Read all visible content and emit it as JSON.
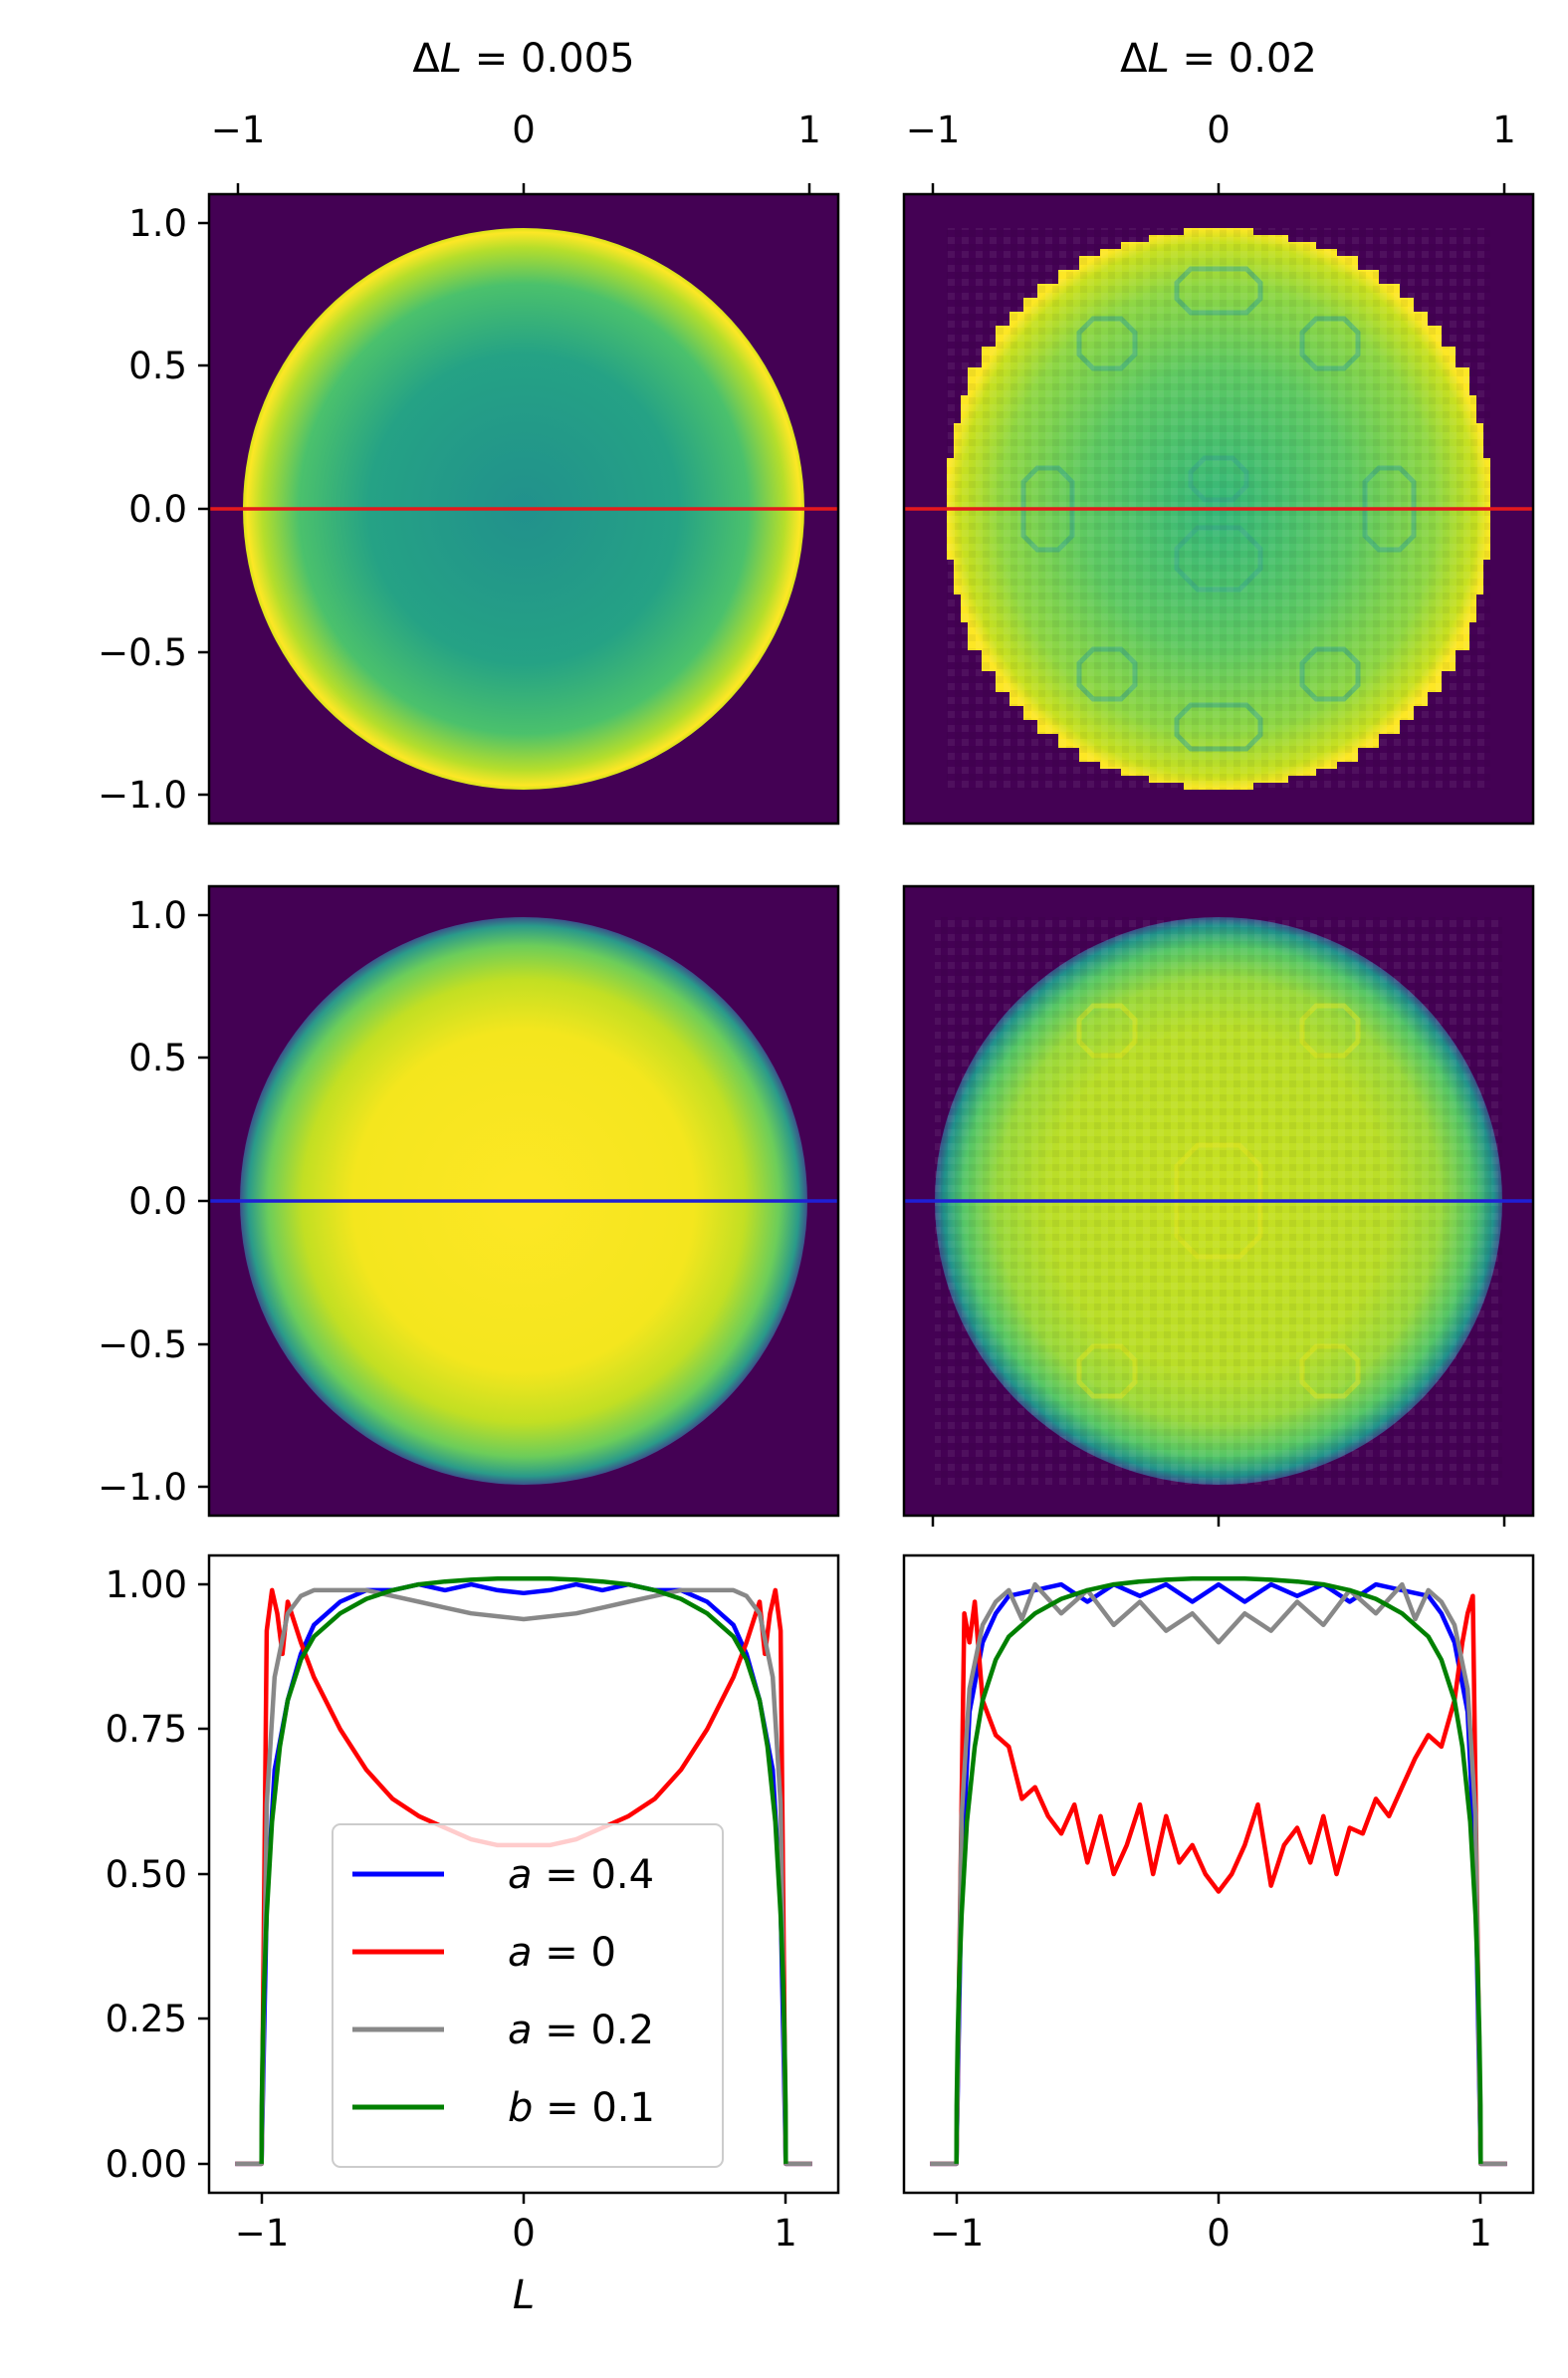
{
  "chart_data": [
    {
      "panel": "top-left",
      "type": "heatmap",
      "title": "ΔL = 0.005",
      "title_prefix": "Δ",
      "title_var": "L",
      "title_rest": " = 0.005",
      "x_ticks": [
        "−1",
        "0",
        "1"
      ],
      "y_ticks": [
        "1.0",
        "0.5",
        "0.0",
        "−0.5",
        "−1.0"
      ],
      "xlim": [
        -1.1,
        1.1
      ],
      "ylim": [
        -1.1,
        1.1
      ],
      "field": "disk radius 0.98, value high at rim, medium in interior",
      "cut_line": {
        "y": 0.0,
        "color": "#e41a1c"
      }
    },
    {
      "panel": "top-right",
      "type": "heatmap",
      "title": "ΔL = 0.02",
      "title_prefix": "Δ",
      "title_var": "L",
      "title_rest": " = 0.02",
      "x_ticks": [
        "−1",
        "0",
        "1"
      ],
      "xlim": [
        -1.1,
        1.1
      ],
      "ylim": [
        -1.1,
        1.1
      ],
      "field": "pixelated disk radius 0.98 with moiré pattern",
      "cut_line": {
        "y": 0.0,
        "color": "#e41a1c"
      }
    },
    {
      "panel": "middle-left",
      "type": "heatmap",
      "y_ticks": [
        "1.0",
        "0.5",
        "0.0",
        "−0.5",
        "−1.0"
      ],
      "xlim": [
        -1.1,
        1.1
      ],
      "ylim": [
        -1.1,
        1.1
      ],
      "field": "smooth disk, bright yellow interior fading at rim",
      "cut_line": {
        "y": 0.0,
        "color": "#1f1fd6"
      }
    },
    {
      "panel": "middle-right",
      "type": "heatmap",
      "xlim": [
        -1.1,
        1.1
      ],
      "ylim": [
        -1.1,
        1.1
      ],
      "field": "pixelated disk, yellow-green interior fading at rim",
      "cut_line": {
        "y": 0.0,
        "color": "#1f1fd6"
      }
    },
    {
      "panel": "bottom-left",
      "type": "line",
      "xlabel": "L",
      "x_ticks": [
        "−1",
        "0",
        "1"
      ],
      "y_ticks": [
        "1.00",
        "0.75",
        "0.50",
        "0.25",
        "0.00"
      ],
      "xlim": [
        -1.2,
        1.2
      ],
      "ylim": [
        -0.05,
        1.05
      ],
      "legend_position": "lower-center",
      "series": [
        {
          "name": "a = 0.4",
          "var": "a",
          "val": " = 0.4",
          "color": "#0000ff",
          "x": [
            -1.1,
            -1.0,
            -0.98,
            -0.95,
            -0.9,
            -0.85,
            -0.8,
            -0.7,
            -0.6,
            -0.5,
            -0.4,
            -0.3,
            -0.2,
            -0.1,
            0.0,
            0.1,
            0.2,
            0.3,
            0.4,
            0.5,
            0.6,
            0.7,
            0.8,
            0.85,
            0.9,
            0.95,
            0.98,
            1.0,
            1.1
          ],
          "y": [
            0.0,
            0.0,
            0.45,
            0.68,
            0.8,
            0.88,
            0.93,
            0.97,
            0.99,
            0.99,
            1.0,
            0.99,
            1.0,
            0.99,
            0.985,
            0.99,
            1.0,
            0.99,
            1.0,
            0.99,
            0.99,
            0.97,
            0.93,
            0.88,
            0.8,
            0.68,
            0.45,
            0.0,
            0.0
          ]
        },
        {
          "name": "a = 0",
          "var": "a",
          "val": " = 0",
          "color": "#ff0000",
          "x": [
            -1.1,
            -1.0,
            -0.98,
            -0.96,
            -0.94,
            -0.92,
            -0.9,
            -0.85,
            -0.8,
            -0.7,
            -0.6,
            -0.5,
            -0.4,
            -0.3,
            -0.2,
            -0.1,
            0.0,
            0.1,
            0.2,
            0.3,
            0.4,
            0.5,
            0.6,
            0.7,
            0.8,
            0.85,
            0.9,
            0.92,
            0.94,
            0.96,
            0.98,
            1.0,
            1.1
          ],
          "y": [
            0.0,
            0.0,
            0.92,
            0.99,
            0.95,
            0.88,
            0.97,
            0.9,
            0.84,
            0.75,
            0.68,
            0.63,
            0.6,
            0.58,
            0.56,
            0.55,
            0.55,
            0.55,
            0.56,
            0.58,
            0.6,
            0.63,
            0.68,
            0.75,
            0.84,
            0.9,
            0.97,
            0.88,
            0.95,
            0.99,
            0.92,
            0.0,
            0.0
          ]
        },
        {
          "name": "a = 0.2",
          "var": "a",
          "val": " = 0.2",
          "color": "#888888",
          "x": [
            -1.1,
            -1.0,
            -0.98,
            -0.95,
            -0.9,
            -0.85,
            -0.8,
            -0.7,
            -0.6,
            -0.5,
            -0.4,
            -0.3,
            -0.2,
            -0.1,
            0.0,
            0.1,
            0.2,
            0.3,
            0.4,
            0.5,
            0.6,
            0.7,
            0.8,
            0.85,
            0.9,
            0.95,
            0.98,
            1.0,
            1.1
          ],
          "y": [
            0.0,
            0.0,
            0.62,
            0.84,
            0.95,
            0.98,
            0.99,
            0.99,
            0.99,
            0.98,
            0.97,
            0.96,
            0.95,
            0.945,
            0.94,
            0.945,
            0.95,
            0.96,
            0.97,
            0.98,
            0.99,
            0.99,
            0.99,
            0.98,
            0.95,
            0.84,
            0.62,
            0.0,
            0.0
          ]
        },
        {
          "name": "b = 0.1",
          "var": "b",
          "val": " = 0.1",
          "color": "#008000",
          "x": [
            -1.0,
            -0.999,
            -0.995,
            -0.99,
            -0.98,
            -0.96,
            -0.93,
            -0.9,
            -0.85,
            -0.8,
            -0.7,
            -0.6,
            -0.5,
            -0.4,
            -0.3,
            -0.2,
            -0.1,
            0.0,
            0.1,
            0.2,
            0.3,
            0.4,
            0.5,
            0.6,
            0.7,
            0.8,
            0.85,
            0.9,
            0.93,
            0.96,
            0.98,
            0.99,
            0.995,
            0.999,
            1.0
          ],
          "y": [
            0.0,
            0.1,
            0.22,
            0.31,
            0.43,
            0.59,
            0.72,
            0.8,
            0.87,
            0.91,
            0.95,
            0.975,
            0.99,
            1.0,
            1.005,
            1.008,
            1.01,
            1.01,
            1.01,
            1.008,
            1.005,
            1.0,
            0.99,
            0.975,
            0.95,
            0.91,
            0.87,
            0.8,
            0.72,
            0.59,
            0.43,
            0.31,
            0.22,
            0.1,
            0.0
          ]
        }
      ]
    },
    {
      "panel": "bottom-right",
      "type": "line",
      "x_ticks": [
        "−1",
        "0",
        "1"
      ],
      "xlim": [
        -1.2,
        1.2
      ],
      "ylim": [
        -0.05,
        1.05
      ],
      "series": [
        {
          "name": "a = 0.4",
          "color": "#0000ff",
          "x": [
            -1.1,
            -1.0,
            -0.98,
            -0.95,
            -0.9,
            -0.85,
            -0.8,
            -0.7,
            -0.6,
            -0.5,
            -0.4,
            -0.3,
            -0.2,
            -0.1,
            0.0,
            0.1,
            0.2,
            0.3,
            0.4,
            0.5,
            0.6,
            0.7,
            0.8,
            0.85,
            0.9,
            0.95,
            0.98,
            1.0,
            1.1
          ],
          "y": [
            0.0,
            0.0,
            0.5,
            0.78,
            0.9,
            0.95,
            0.98,
            0.99,
            1.0,
            0.97,
            1.0,
            0.98,
            1.0,
            0.97,
            1.0,
            0.97,
            1.0,
            0.98,
            1.0,
            0.97,
            1.0,
            0.99,
            0.98,
            0.95,
            0.9,
            0.78,
            0.5,
            0.0,
            0.0
          ]
        },
        {
          "name": "a = 0",
          "color": "#ff0000",
          "x": [
            -1.1,
            -1.0,
            -0.97,
            -0.95,
            -0.93,
            -0.9,
            -0.85,
            -0.8,
            -0.75,
            -0.7,
            -0.65,
            -0.6,
            -0.55,
            -0.5,
            -0.45,
            -0.4,
            -0.35,
            -0.3,
            -0.25,
            -0.2,
            -0.15,
            -0.1,
            -0.05,
            0.0,
            0.05,
            0.1,
            0.15,
            0.2,
            0.25,
            0.3,
            0.35,
            0.4,
            0.45,
            0.5,
            0.55,
            0.6,
            0.65,
            0.7,
            0.75,
            0.8,
            0.85,
            0.9,
            0.93,
            0.95,
            0.97,
            1.0,
            1.1
          ],
          "y": [
            0.0,
            0.0,
            0.95,
            0.9,
            0.97,
            0.8,
            0.74,
            0.72,
            0.63,
            0.65,
            0.6,
            0.57,
            0.62,
            0.52,
            0.6,
            0.5,
            0.55,
            0.62,
            0.5,
            0.6,
            0.52,
            0.55,
            0.5,
            0.47,
            0.5,
            0.55,
            0.62,
            0.48,
            0.55,
            0.58,
            0.52,
            0.6,
            0.5,
            0.58,
            0.57,
            0.63,
            0.6,
            0.65,
            0.7,
            0.74,
            0.72,
            0.8,
            0.9,
            0.95,
            0.98,
            0.0,
            0.0
          ]
        },
        {
          "name": "a = 0.2",
          "color": "#888888",
          "x": [
            -1.1,
            -1.0,
            -0.98,
            -0.95,
            -0.9,
            -0.85,
            -0.8,
            -0.75,
            -0.7,
            -0.6,
            -0.5,
            -0.4,
            -0.3,
            -0.2,
            -0.1,
            0.0,
            0.1,
            0.2,
            0.3,
            0.4,
            0.5,
            0.6,
            0.7,
            0.75,
            0.8,
            0.85,
            0.9,
            0.95,
            0.98,
            1.0,
            1.1
          ],
          "y": [
            0.0,
            0.0,
            0.6,
            0.82,
            0.93,
            0.97,
            0.99,
            0.94,
            1.0,
            0.95,
            0.99,
            0.93,
            0.97,
            0.92,
            0.95,
            0.9,
            0.95,
            0.92,
            0.97,
            0.93,
            0.99,
            0.95,
            1.0,
            0.94,
            0.99,
            0.97,
            0.93,
            0.82,
            0.6,
            0.0,
            0.0
          ]
        },
        {
          "name": "b = 0.1",
          "color": "#008000",
          "x": [
            -1.0,
            -0.999,
            -0.995,
            -0.99,
            -0.98,
            -0.96,
            -0.93,
            -0.9,
            -0.85,
            -0.8,
            -0.7,
            -0.6,
            -0.5,
            -0.4,
            -0.3,
            -0.2,
            -0.1,
            0.0,
            0.1,
            0.2,
            0.3,
            0.4,
            0.5,
            0.6,
            0.7,
            0.8,
            0.85,
            0.9,
            0.93,
            0.96,
            0.98,
            0.99,
            0.995,
            0.999,
            1.0
          ],
          "y": [
            0.0,
            0.1,
            0.22,
            0.31,
            0.43,
            0.59,
            0.72,
            0.8,
            0.87,
            0.91,
            0.95,
            0.975,
            0.99,
            1.0,
            1.005,
            1.008,
            1.01,
            1.01,
            1.01,
            1.008,
            1.005,
            1.0,
            0.99,
            0.975,
            0.95,
            0.91,
            0.87,
            0.8,
            0.72,
            0.59,
            0.43,
            0.31,
            0.22,
            0.1,
            0.0
          ]
        }
      ]
    }
  ],
  "colors": {
    "background": "#440154",
    "viridis_dark": "#440154",
    "viridis_mid": "#21918c",
    "viridis_green": "#5ec962",
    "viridis_yellow": "#fde725"
  }
}
